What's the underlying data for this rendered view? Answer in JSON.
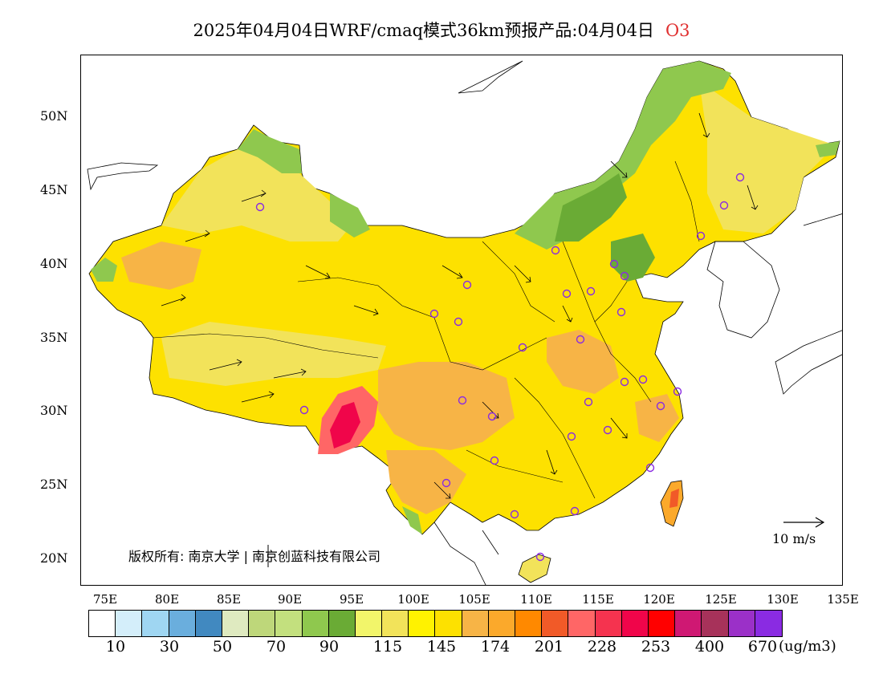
{
  "title": {
    "text": "2025年04月04日WRF/cmaq模式36km预报产品:04月04日",
    "variable": "O3"
  },
  "axes": {
    "lat_labels": [
      "50N",
      "45N",
      "40N",
      "35N",
      "30N",
      "25N",
      "20N"
    ],
    "lon_labels": [
      "75E",
      "80E",
      "85E",
      "90E",
      "95E",
      "100E",
      "105E",
      "110E",
      "115E",
      "120E",
      "125E",
      "130E",
      "135E"
    ]
  },
  "legend": {
    "colors": [
      "#ffffff",
      "#d4eefa",
      "#9fd6f2",
      "#6aaedd",
      "#4189c0",
      "#dfeac0",
      "#bed77a",
      "#c3e07e",
      "#8fc84e",
      "#6aab35",
      "#f2f56a",
      "#f2e35a",
      "#fff200",
      "#fde100",
      "#f7b446",
      "#fba92b",
      "#ff8900",
      "#f15a28",
      "#ff6666",
      "#f5334f",
      "#f0054a",
      "#ff0000",
      "#cf1873",
      "#a7325a",
      "#9b30c8",
      "#8a2be2"
    ],
    "labels": [
      "10",
      "30",
      "50",
      "70",
      "90",
      "115",
      "145",
      "174",
      "201",
      "228",
      "253",
      "400",
      "670"
    ],
    "unit": "(ug/m3)"
  },
  "copyright": "版权所有: 南京大学 | 南京创蓝科技有限公司",
  "wind_reference": "10 m/s"
}
